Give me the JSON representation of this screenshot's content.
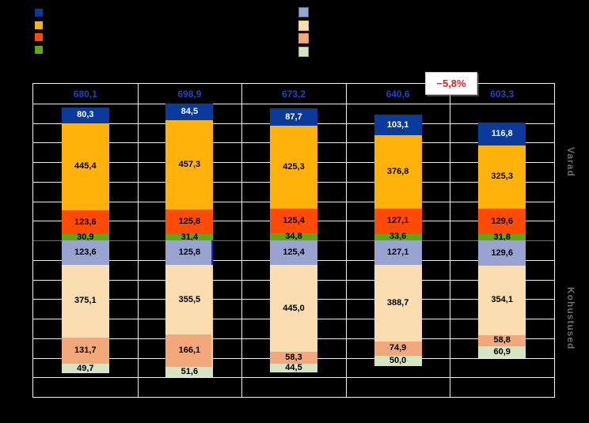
{
  "colors": {
    "dark-blue": "#0A3B9C",
    "orange": "#FFB30A",
    "orange-red": "#FF4A08",
    "green": "#5CA911",
    "lavender": "#98A3D0",
    "peach": "#FBDDB2",
    "salmon": "#F3A87B",
    "light-green": "#D8E4C1",
    "grid": "#EFEFEF",
    "baseline": "#6F6F6F",
    "plot_border": "#F2F2F2",
    "total_label": "#1E43C4",
    "annotation_red": "#EE1C25",
    "axis_label_gray": "#6E6E6E",
    "background": "#000000"
  },
  "legend_left": {
    "keys": [
      "dark-blue",
      "orange",
      "orange-red",
      "green"
    ]
  },
  "legend_right": {
    "keys": [
      "lavender",
      "peach",
      "salmon",
      "light-green"
    ],
    "border_colors": {
      "lavender": "#4A5FC0",
      "peach": "#FFC845",
      "salmon": "#E78B54",
      "light-green": "#84BC52"
    }
  },
  "annotation": {
    "text": "−5,8%"
  },
  "chart_data": {
    "type": "bar",
    "subtype": "stacked-diverging-vertical",
    "title_visible": false,
    "x_tick_labels_visible": false,
    "legend_text_visible": false,
    "groups": 5,
    "gridlines": {
      "rows": 16,
      "units_per_row": 100,
      "baseline_row": 8
    },
    "ylim": {
      "varad_max": 800,
      "kohustused_max": 800
    },
    "totals_labels": [
      "680,1",
      "698,9",
      "673,2",
      "640,6",
      "603,3"
    ],
    "varad": {
      "axis_label": "Varad",
      "series": [
        {
          "color_key": "dark-blue",
          "label_color": "#FFFFFF",
          "values": [
            80.3,
            84.5,
            87.7,
            103.1,
            116.8
          ],
          "labels": [
            "80,3",
            "84,5",
            "87,7",
            "103,1",
            "116,8"
          ]
        },
        {
          "color_key": "orange",
          "values": [
            445.4,
            457.3,
            425.3,
            376.8,
            325.3
          ],
          "labels": [
            "445,4",
            "457,3",
            "425,3",
            "376,8",
            "325,3"
          ]
        },
        {
          "color_key": "orange-red",
          "values": [
            123.6,
            125.8,
            125.4,
            127.1,
            129.6
          ],
          "labels": [
            "123,6",
            "125,8",
            "125,4",
            "127,1",
            "129,6"
          ]
        },
        {
          "color_key": "green",
          "values": [
            30.9,
            31.4,
            34.8,
            33.6,
            31.8
          ],
          "labels": [
            "30,9",
            "31,4",
            "34,8",
            "33,6",
            "31,8"
          ]
        }
      ]
    },
    "kohustused": {
      "axis_label": "Kohustused",
      "series": [
        {
          "color_key": "lavender",
          "values": [
            123.6,
            125.8,
            125.4,
            127.1,
            129.6
          ],
          "labels": [
            "123,6",
            "125,8",
            "125,4",
            "127,1",
            "129,6"
          ]
        },
        {
          "color_key": "peach",
          "values": [
            375.1,
            355.5,
            445.0,
            388.7,
            354.1
          ],
          "labels": [
            "375,1",
            "355,5",
            "445,0",
            "388,7",
            "354,1"
          ]
        },
        {
          "color_key": "salmon",
          "values": [
            131.7,
            166.1,
            58.3,
            74.9,
            58.8
          ],
          "labels": [
            "131,7",
            "166,1",
            "58,3",
            "74,9",
            "58,8"
          ]
        },
        {
          "color_key": "light-green",
          "values": [
            49.7,
            51.6,
            44.5,
            50.0,
            60.9
          ],
          "labels": [
            "49,7",
            "51,6",
            "44,5",
            "50,0",
            "60,9"
          ]
        }
      ]
    },
    "highlight_edges": {
      "group_index": 1,
      "top_color": "#2424CC",
      "bottom_color": "#FFE06E"
    }
  }
}
